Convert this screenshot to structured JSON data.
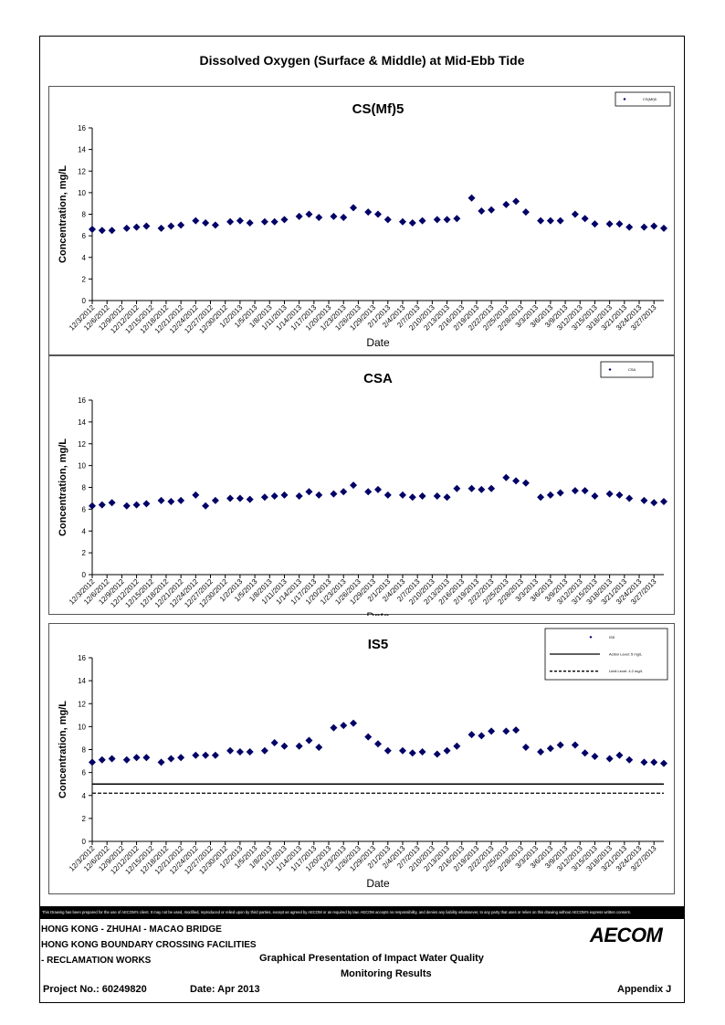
{
  "page_title": "Dissolved Oxygen (Surface & Middle) at Mid-Ebb Tide",
  "colors": {
    "marker": "#000066",
    "frame": "#000000"
  },
  "disclaimer": "This Drawing has been prepared for the use of AECOM's client. It may not be used, modified, reproduced or relied upon by third parties, except as agreed by AECOM or as required by law. AECOM accepts no responsibility, and denies any liability whatsoever, to any party that uses or relies on this drawing without AECOM's express written consent.",
  "footer": {
    "project_line1": "HONG KONG - ZHUHAI - MACAO BRIDGE",
    "project_line2": "HONG KONG BOUNDARY CROSSING FACILITIES",
    "project_line3": "- RECLAMATION WORKS",
    "doc_title_1": "Graphical Presentation of Impact Water Quality",
    "doc_title_2": "Monitoring Results",
    "project_no": "Project No.: 60249820",
    "date": "Date: Apr 2013",
    "appendix": "Appendix J",
    "logo": "AECOM"
  },
  "chart_data": [
    {
      "type": "scatter",
      "title": "CS(Mf)5",
      "xlabel": "Date",
      "ylabel": "Concentration, mg/L",
      "ylim": [
        0,
        16
      ],
      "yticks": [
        0,
        2,
        4,
        6,
        8,
        10,
        12,
        14,
        16
      ],
      "xticks": [
        "12/3/2012",
        "12/6/2012",
        "12/9/2012",
        "12/12/2012",
        "12/15/2012",
        "12/18/2012",
        "12/21/2012",
        "12/24/2012",
        "12/27/2012",
        "12/30/2012",
        "1/2/2013",
        "1/5/2013",
        "1/8/2013",
        "1/11/2013",
        "1/14/2013",
        "1/17/2013",
        "1/20/2013",
        "1/23/2013",
        "1/26/2013",
        "1/29/2013",
        "2/1/2013",
        "2/4/2013",
        "2/7/2013",
        "2/10/2013",
        "2/13/2013",
        "2/16/2013",
        "2/19/2013",
        "2/22/2013",
        "2/25/2013",
        "2/28/2013",
        "3/3/2013",
        "3/6/2013",
        "3/9/2013",
        "3/12/2013",
        "3/15/2013",
        "3/18/2013",
        "3/21/2013",
        "3/24/2013",
        "3/27/2013"
      ],
      "legend": {
        "placement": "top-right",
        "entries": [
          "CS(Mf)5"
        ]
      },
      "x": [
        "12/3/2012",
        "12/5/2012",
        "12/7/2012",
        "12/10/2012",
        "12/12/2012",
        "12/14/2012",
        "12/17/2012",
        "12/19/2012",
        "12/21/2012",
        "12/24/2012",
        "12/26/2012",
        "12/28/2012",
        "12/31/2012",
        "1/2/2013",
        "1/4/2013",
        "1/7/2013",
        "1/9/2013",
        "1/11/2013",
        "1/14/2013",
        "1/16/2013",
        "1/18/2013",
        "1/21/2013",
        "1/23/2013",
        "1/25/2013",
        "1/28/2013",
        "1/30/2013",
        "2/1/2013",
        "2/4/2013",
        "2/6/2013",
        "2/8/2013",
        "2/11/2013",
        "2/13/2013",
        "2/15/2013",
        "2/18/2013",
        "2/20/2013",
        "2/22/2013",
        "2/25/2013",
        "2/27/2013",
        "3/1/2013",
        "3/4/2013",
        "3/6/2013",
        "3/8/2013",
        "3/11/2013",
        "3/13/2013",
        "3/15/2013",
        "3/18/2013",
        "3/20/2013",
        "3/22/2013",
        "3/25/2013",
        "3/27/2013",
        "3/29/2013"
      ],
      "values": [
        6.6,
        6.5,
        6.5,
        6.7,
        6.8,
        6.9,
        6.7,
        6.9,
        7.0,
        7.4,
        7.2,
        7.0,
        7.3,
        7.4,
        7.2,
        7.3,
        7.3,
        7.5,
        7.8,
        8.0,
        7.7,
        7.8,
        7.7,
        8.6,
        8.2,
        8.0,
        7.5,
        7.3,
        7.2,
        7.4,
        7.5,
        7.5,
        7.6,
        9.5,
        8.3,
        8.4,
        8.9,
        9.2,
        8.2,
        7.4,
        7.4,
        7.4,
        8.0,
        7.6,
        7.1,
        7.1,
        7.1,
        6.8,
        6.8,
        6.9,
        6.7
      ]
    },
    {
      "type": "scatter",
      "title": "CSA",
      "xlabel": "Date",
      "ylabel": "Concentration, mg/L",
      "ylim": [
        0,
        16
      ],
      "yticks": [
        0,
        2,
        4,
        6,
        8,
        10,
        12,
        14,
        16
      ],
      "xticks": [
        "12/3/2012",
        "12/6/2012",
        "12/9/2012",
        "12/12/2012",
        "12/15/2012",
        "12/18/2012",
        "12/21/2012",
        "12/24/2012",
        "12/27/2012",
        "12/30/2012",
        "1/2/2013",
        "1/5/2013",
        "1/8/2013",
        "1/11/2013",
        "1/14/2013",
        "1/17/2013",
        "1/20/2013",
        "1/23/2013",
        "1/26/2013",
        "1/29/2013",
        "2/1/2013",
        "2/4/2013",
        "2/7/2013",
        "2/10/2013",
        "2/13/2013",
        "2/16/2013",
        "2/19/2013",
        "2/22/2013",
        "2/25/2013",
        "2/28/2013",
        "3/3/2013",
        "3/6/2013",
        "3/9/2013",
        "3/12/2013",
        "3/15/2013",
        "3/18/2013",
        "3/21/2013",
        "3/24/2013",
        "3/27/2013"
      ],
      "legend": {
        "placement": "top-right",
        "entries": [
          "CSA"
        ]
      },
      "x": [
        "12/3/2012",
        "12/5/2012",
        "12/7/2012",
        "12/10/2012",
        "12/12/2012",
        "12/14/2012",
        "12/17/2012",
        "12/19/2012",
        "12/21/2012",
        "12/24/2012",
        "12/26/2012",
        "12/28/2012",
        "12/31/2012",
        "1/2/2013",
        "1/4/2013",
        "1/7/2013",
        "1/9/2013",
        "1/11/2013",
        "1/14/2013",
        "1/16/2013",
        "1/18/2013",
        "1/21/2013",
        "1/23/2013",
        "1/25/2013",
        "1/28/2013",
        "1/30/2013",
        "2/1/2013",
        "2/4/2013",
        "2/6/2013",
        "2/8/2013",
        "2/11/2013",
        "2/13/2013",
        "2/15/2013",
        "2/18/2013",
        "2/20/2013",
        "2/22/2013",
        "2/25/2013",
        "2/27/2013",
        "3/1/2013",
        "3/4/2013",
        "3/6/2013",
        "3/8/2013",
        "3/11/2013",
        "3/13/2013",
        "3/15/2013",
        "3/18/2013",
        "3/20/2013",
        "3/22/2013",
        "3/25/2013",
        "3/27/2013",
        "3/29/2013"
      ],
      "values": [
        6.3,
        6.4,
        6.6,
        6.3,
        6.4,
        6.5,
        6.8,
        6.7,
        6.8,
        7.3,
        6.3,
        6.8,
        7.0,
        7.0,
        6.9,
        7.1,
        7.2,
        7.3,
        7.2,
        7.6,
        7.3,
        7.4,
        7.6,
        8.2,
        7.6,
        7.8,
        7.3,
        7.3,
        7.1,
        7.2,
        7.2,
        7.1,
        7.9,
        7.9,
        7.8,
        7.9,
        8.9,
        8.6,
        8.4,
        7.1,
        7.3,
        7.5,
        7.7,
        7.7,
        7.2,
        7.4,
        7.3,
        7.0,
        6.8,
        6.6,
        6.7
      ]
    },
    {
      "type": "scatter",
      "title": "IS5",
      "xlabel": "Date",
      "ylabel": "Concentration, mg/L",
      "ylim": [
        0,
        16
      ],
      "yticks": [
        0,
        2,
        4,
        6,
        8,
        10,
        12,
        14,
        16
      ],
      "xticks": [
        "12/3/2012",
        "12/6/2012",
        "12/9/2012",
        "12/12/2012",
        "12/15/2012",
        "12/18/2012",
        "12/21/2012",
        "12/24/2012",
        "12/27/2012",
        "12/30/2012",
        "1/2/2013",
        "1/5/2013",
        "1/8/2013",
        "1/11/2013",
        "1/14/2013",
        "1/17/2013",
        "1/20/2013",
        "1/23/2013",
        "1/26/2013",
        "1/29/2013",
        "2/1/2013",
        "2/4/2013",
        "2/7/2013",
        "2/10/2013",
        "2/13/2013",
        "2/16/2013",
        "2/19/2013",
        "2/22/2013",
        "2/25/2013",
        "2/28/2013",
        "3/3/2013",
        "3/6/2013",
        "3/9/2013",
        "3/12/2013",
        "3/15/2013",
        "3/18/2013",
        "3/21/2013",
        "3/24/2013",
        "3/27/2013"
      ],
      "legend": {
        "placement": "top-right",
        "entries": [
          "IS5",
          "Action Level: 5 mg/L",
          "Limit Level: 4.2 mg/L"
        ]
      },
      "reference_lines": [
        {
          "name": "Action Level: 5 mg/L",
          "value": 5.0,
          "style": "solid"
        },
        {
          "name": "Limit Level: 4.2 mg/L",
          "value": 4.2,
          "style": "dashed"
        }
      ],
      "x": [
        "12/3/2012",
        "12/5/2012",
        "12/7/2012",
        "12/10/2012",
        "12/12/2012",
        "12/14/2012",
        "12/17/2012",
        "12/19/2012",
        "12/21/2012",
        "12/24/2012",
        "12/26/2012",
        "12/28/2012",
        "12/31/2012",
        "1/2/2013",
        "1/4/2013",
        "1/7/2013",
        "1/9/2013",
        "1/11/2013",
        "1/14/2013",
        "1/16/2013",
        "1/18/2013",
        "1/21/2013",
        "1/23/2013",
        "1/25/2013",
        "1/28/2013",
        "1/30/2013",
        "2/1/2013",
        "2/4/2013",
        "2/6/2013",
        "2/8/2013",
        "2/11/2013",
        "2/13/2013",
        "2/15/2013",
        "2/18/2013",
        "2/20/2013",
        "2/22/2013",
        "2/25/2013",
        "2/27/2013",
        "3/1/2013",
        "3/4/2013",
        "3/6/2013",
        "3/8/2013",
        "3/11/2013",
        "3/13/2013",
        "3/15/2013",
        "3/18/2013",
        "3/20/2013",
        "3/22/2013",
        "3/25/2013",
        "3/27/2013",
        "3/29/2013"
      ],
      "values": [
        6.9,
        7.1,
        7.2,
        7.1,
        7.3,
        7.3,
        6.9,
        7.2,
        7.3,
        7.5,
        7.5,
        7.5,
        7.9,
        7.8,
        7.8,
        7.9,
        8.6,
        8.3,
        8.3,
        8.8,
        8.2,
        9.9,
        10.1,
        10.3,
        9.1,
        8.5,
        7.9,
        7.9,
        7.7,
        7.8,
        7.6,
        7.9,
        8.3,
        9.3,
        9.2,
        9.6,
        9.6,
        9.7,
        8.2,
        7.8,
        8.1,
        8.4,
        8.4,
        7.7,
        7.4,
        7.2,
        7.5,
        7.1,
        6.9,
        6.9,
        6.8
      ]
    }
  ]
}
